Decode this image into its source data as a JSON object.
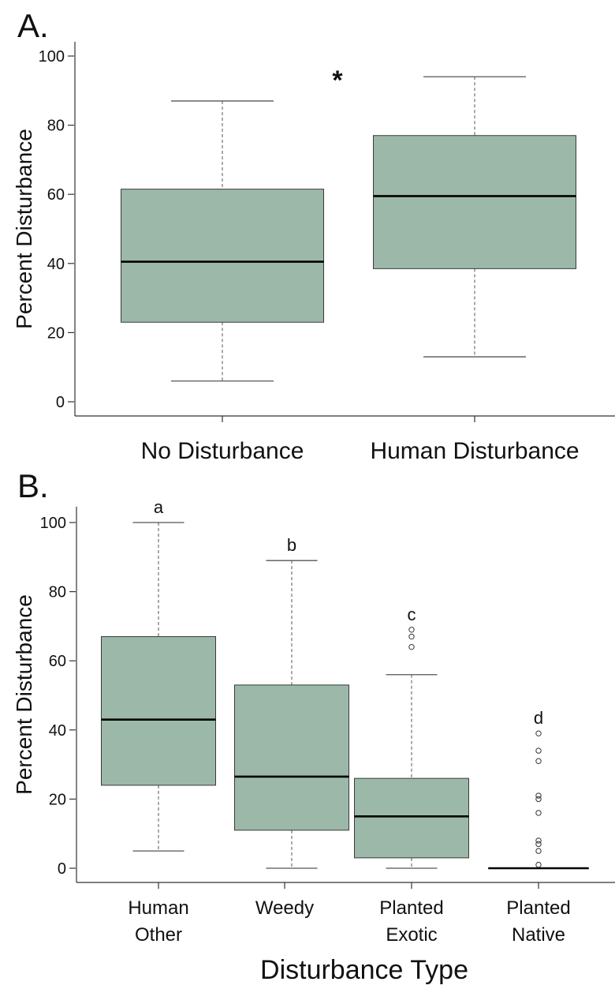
{
  "colors": {
    "box_fill": "#9cb8a9",
    "box_stroke": "#3a3a3a",
    "median": "#000000",
    "whisker": "#555555"
  },
  "chart_data": [
    {
      "panel_label": "A.",
      "type": "box",
      "ylabel": "Percent Disturbance",
      "xlabel": "",
      "ylim": [
        -3,
        104
      ],
      "yticks": [
        0,
        20,
        40,
        60,
        80,
        100
      ],
      "grid": false,
      "annotations": [
        {
          "text": "*",
          "between": [
            "No Disturbance",
            "Human Disturbance"
          ],
          "y": 95
        }
      ],
      "categories": [
        {
          "label": [
            "No Disturbance"
          ],
          "min": 6,
          "q1": 23,
          "median": 40.5,
          "q3": 61.5,
          "max": 87,
          "outliers": [],
          "letter": ""
        },
        {
          "label": [
            "Human Disturbance"
          ],
          "min": 13,
          "q1": 38.5,
          "median": 59.5,
          "q3": 77,
          "max": 94,
          "outliers": [],
          "letter": ""
        }
      ]
    },
    {
      "panel_label": "B.",
      "type": "box",
      "ylabel": "Percent Disturbance",
      "xlabel": "Disturbance Type",
      "ylim": [
        -4,
        104
      ],
      "yticks": [
        0,
        20,
        40,
        60,
        80,
        100
      ],
      "grid": false,
      "categories": [
        {
          "label": [
            "Human",
            "Other"
          ],
          "min": 5,
          "q1": 24,
          "median": 43,
          "q3": 67,
          "max": 100,
          "outliers": [],
          "letter": "a"
        },
        {
          "label": [
            "Weedy"
          ],
          "min": 0,
          "q1": 11,
          "median": 26.5,
          "q3": 53,
          "max": 89,
          "outliers": [],
          "letter": "b"
        },
        {
          "label": [
            "Planted",
            "Exotic"
          ],
          "min": 0,
          "q1": 3,
          "median": 15,
          "q3": 26,
          "max": 56,
          "outliers": [
            64,
            67,
            69
          ],
          "letter": "c"
        },
        {
          "label": [
            "Planted",
            "Native"
          ],
          "min": 0,
          "q1": 0,
          "median": 0,
          "q3": 0,
          "max": 0,
          "outliers": [
            1,
            5,
            7,
            8,
            16,
            20,
            21,
            31,
            34,
            39
          ],
          "letter": "d"
        }
      ]
    }
  ]
}
